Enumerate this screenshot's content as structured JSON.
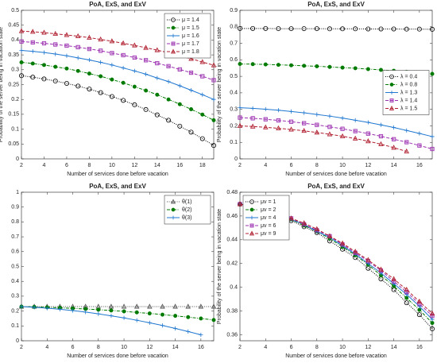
{
  "chart_data": [
    {
      "type": "line",
      "title": "PoA, ExS, and ExV",
      "xlabel": "Number of services done before vacation",
      "ylabel": "Probability of the server being in vacation state",
      "x": [
        2,
        3,
        4,
        5,
        6,
        7,
        8,
        9,
        10,
        11,
        12,
        13,
        14,
        15,
        16,
        17,
        18,
        19
      ],
      "xlim": [
        2,
        19
      ],
      "xticks": [
        2,
        4,
        6,
        8,
        10,
        12,
        14,
        16,
        18
      ],
      "ylim": [
        0,
        0.5
      ],
      "yticks": [
        0,
        0.05,
        0.1,
        0.15,
        0.2,
        0.25,
        0.3,
        0.35,
        0.4,
        0.45,
        0.5
      ],
      "legend": "northeast",
      "series": [
        {
          "name": "μ = 1.4",
          "color": "#000000",
          "marker": "o",
          "dash": "dotted",
          "values": [
            0.28,
            0.275,
            0.269,
            0.262,
            0.254,
            0.245,
            0.235,
            0.223,
            0.21,
            0.197,
            0.182,
            0.166,
            0.148,
            0.13,
            0.11,
            0.09,
            0.068,
            0.045
          ]
        },
        {
          "name": "μ = 1.5",
          "color": "#007a00",
          "marker": "filled",
          "dash": "dashdot",
          "values": [
            0.325,
            0.321,
            0.316,
            0.31,
            0.304,
            0.296,
            0.287,
            0.278,
            0.267,
            0.256,
            0.243,
            0.23,
            0.216,
            0.2,
            0.184,
            0.167,
            0.149,
            0.13
          ]
        },
        {
          "name": "μ = 1.6",
          "color": "#1f77d0",
          "marker": "+",
          "dash": "solid",
          "values": [
            0.365,
            0.362,
            0.358,
            0.353,
            0.347,
            0.34,
            0.333,
            0.325,
            0.316,
            0.306,
            0.296,
            0.285,
            0.272,
            0.26,
            0.246,
            0.231,
            0.216,
            0.2
          ]
        },
        {
          "name": "μ = 1.7",
          "color": "#9b30b0",
          "marker": "s",
          "dash": "dashed",
          "values": [
            0.395,
            0.392,
            0.389,
            0.385,
            0.381,
            0.376,
            0.37,
            0.364,
            0.356,
            0.349,
            0.341,
            0.332,
            0.322,
            0.312,
            0.301,
            0.29,
            0.278,
            0.265
          ]
        },
        {
          "name": "μ = 1.8",
          "color": "#b02030",
          "marker": "^",
          "dash": "dashed",
          "values": [
            0.43,
            0.428,
            0.425,
            0.421,
            0.417,
            0.413,
            0.408,
            0.402,
            0.396,
            0.389,
            0.382,
            0.374,
            0.366,
            0.357,
            0.347,
            0.337,
            0.326,
            0.315
          ]
        }
      ]
    },
    {
      "type": "line",
      "title": "PoA, ExS, and ExV",
      "xlabel": "Number of services done before vacation",
      "ylabel": "Probability of the server being in vacation state",
      "x": [
        2,
        3,
        4,
        5,
        6,
        7,
        8,
        9,
        10,
        11,
        12,
        13,
        14,
        15,
        16,
        17
      ],
      "xlim": [
        2,
        17
      ],
      "xticks": [
        2,
        4,
        6,
        8,
        10,
        12,
        14,
        16
      ],
      "ylim": [
        0,
        0.9
      ],
      "yticks": [
        0,
        0.1,
        0.2,
        0.3,
        0.4,
        0.5,
        0.6,
        0.7,
        0.8,
        0.9
      ],
      "legend": "east",
      "series": [
        {
          "name": "λ = 0.4",
          "color": "#000000",
          "marker": "o",
          "dash": "dotted",
          "values": [
            0.79,
            0.79,
            0.79,
            0.789,
            0.789,
            0.789,
            0.789,
            0.788,
            0.788,
            0.788,
            0.787,
            0.787,
            0.787,
            0.786,
            0.786,
            0.785
          ]
        },
        {
          "name": "λ = 0.8",
          "color": "#007a00",
          "marker": "filled",
          "dash": "dashdot",
          "values": [
            0.575,
            0.574,
            0.572,
            0.57,
            0.567,
            0.564,
            0.561,
            0.557,
            0.553,
            0.549,
            0.544,
            0.539,
            0.534,
            0.528,
            0.522,
            0.515
          ]
        },
        {
          "name": "λ = 1.3",
          "color": "#1f77d0",
          "marker": "+",
          "dash": "solid",
          "values": [
            0.31,
            0.306,
            0.301,
            0.295,
            0.287,
            0.279,
            0.269,
            0.259,
            0.247,
            0.234,
            0.221,
            0.206,
            0.19,
            0.172,
            0.154,
            0.135
          ]
        },
        {
          "name": "λ = 1.4",
          "color": "#9b30b0",
          "marker": "s",
          "dash": "dashed",
          "values": [
            0.25,
            0.246,
            0.24,
            0.233,
            0.225,
            0.216,
            0.206,
            0.194,
            0.182,
            0.168,
            0.153,
            0.137,
            0.119,
            0.101,
            0.081,
            0.06
          ]
        },
        {
          "name": "λ = 1.5",
          "color": "#b02030",
          "marker": "^",
          "dash": "dashed",
          "values": [
            0.2,
            0.196,
            0.191,
            0.185,
            0.178,
            0.17,
            0.16,
            0.149,
            0.137,
            0.123,
            0.107,
            0.089,
            0.068,
            0.045,
            null,
            null
          ]
        }
      ]
    },
    {
      "type": "line",
      "title": "PoA, ExS, and ExV",
      "xlabel": "Number of services done before vacation",
      "x": [
        2,
        3,
        4,
        5,
        6,
        7,
        8,
        9,
        10,
        11,
        12,
        13,
        14,
        15,
        16,
        17
      ],
      "xlim": [
        2,
        17
      ],
      "xticks": [
        2,
        4,
        6,
        8,
        10,
        12,
        14,
        16
      ],
      "ylim": [
        0,
        1
      ],
      "yticks": [
        0,
        0.1,
        0.2,
        0.3,
        0.4,
        0.5,
        0.6,
        0.7,
        0.8,
        0.9,
        1
      ],
      "legend": "northeast",
      "series": [
        {
          "name": "θ(1)",
          "color": "#555555",
          "marker": "^",
          "dash": "dotted",
          "values": [
            0.23,
            0.23,
            0.23,
            0.23,
            0.23,
            0.23,
            0.23,
            0.23,
            0.23,
            0.23,
            0.23,
            0.23,
            0.23,
            0.23,
            0.23,
            0.23
          ]
        },
        {
          "name": "θ(2)",
          "color": "#007a00",
          "marker": "filled",
          "dash": "dashdot",
          "values": [
            0.23,
            0.228,
            0.225,
            0.222,
            0.218,
            0.214,
            0.209,
            0.204,
            0.198,
            0.191,
            0.184,
            0.176,
            0.168,
            0.159,
            0.15,
            0.14
          ]
        },
        {
          "name": "θ(3)",
          "color": "#1f77d0",
          "marker": "+",
          "dash": "solid",
          "values": [
            0.23,
            0.225,
            0.219,
            0.212,
            0.203,
            0.193,
            0.181,
            0.168,
            0.154,
            0.138,
            0.121,
            0.103,
            0.083,
            0.062,
            0.04,
            null
          ]
        }
      ]
    },
    {
      "type": "line",
      "title": "PoA, ExS, and ExV",
      "xlabel": "Number of services done before vacation",
      "ylabel": "Probability of the server being in vacation state",
      "x": [
        2,
        3,
        4,
        5,
        6,
        7,
        8,
        9,
        10,
        11,
        12,
        13,
        14,
        15,
        16,
        17
      ],
      "xlim": [
        2,
        17
      ],
      "xticks": [
        2,
        4,
        6,
        8,
        10,
        12,
        14,
        16
      ],
      "ylim": [
        0.355,
        0.48
      ],
      "yticks": [
        0.36,
        0.38,
        0.4,
        0.42,
        0.44,
        0.46,
        0.48
      ],
      "legend": "northwest",
      "series": [
        {
          "name": "μv = 1",
          "color": "#000000",
          "marker": "o",
          "dash": "dotted",
          "values": [
            0.47,
            0.468,
            0.464,
            0.461,
            0.456,
            0.451,
            0.446,
            0.439,
            0.432,
            0.425,
            0.416,
            0.407,
            0.398,
            0.387,
            0.377,
            0.365
          ]
        },
        {
          "name": "μv = 2",
          "color": "#007a00",
          "marker": "filled",
          "dash": "dashdot",
          "values": [
            0.47,
            0.468,
            0.465,
            0.461,
            0.457,
            0.452,
            0.447,
            0.441,
            0.434,
            0.427,
            0.419,
            0.41,
            0.401,
            0.391,
            0.381,
            0.37
          ]
        },
        {
          "name": "μv = 4",
          "color": "#1f77d0",
          "marker": "+",
          "dash": "solid",
          "values": [
            0.47,
            0.468,
            0.465,
            0.461,
            0.457,
            0.453,
            0.447,
            0.442,
            0.435,
            0.428,
            0.42,
            0.412,
            0.403,
            0.394,
            0.384,
            0.373
          ]
        },
        {
          "name": "μv = 6",
          "color": "#9b30b0",
          "marker": "s",
          "dash": "dashed",
          "values": [
            0.47,
            0.468,
            0.465,
            0.462,
            0.458,
            0.453,
            0.448,
            0.443,
            0.436,
            0.429,
            0.422,
            0.414,
            0.405,
            0.396,
            0.386,
            0.376
          ]
        },
        {
          "name": "μv = 9",
          "color": "#b02030",
          "marker": "^",
          "dash": "dashed",
          "values": [
            0.47,
            0.468,
            0.465,
            0.462,
            0.458,
            0.454,
            0.449,
            0.443,
            0.437,
            0.43,
            0.423,
            0.415,
            0.407,
            0.398,
            0.388,
            0.378
          ]
        }
      ]
    }
  ]
}
